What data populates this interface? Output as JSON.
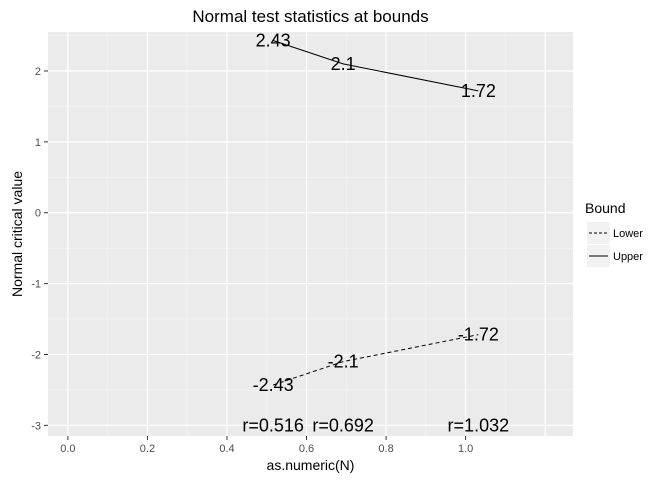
{
  "chart_data": {
    "type": "line",
    "title": "Normal test statistics at bounds",
    "xlabel": "as.numeric(N)",
    "ylabel": "Normal critical value",
    "xlim": [
      -0.05,
      1.27
    ],
    "ylim": [
      -3.15,
      2.55
    ],
    "x_ticks": [
      0.0,
      0.2,
      0.4,
      0.6,
      0.8,
      1.0
    ],
    "x_tick_labels": [
      "0.0",
      "0.2",
      "0.4",
      "0.6",
      "0.8",
      "1.0"
    ],
    "y_ticks": [
      -3,
      -2,
      -1,
      0,
      1,
      2
    ],
    "y_tick_labels": [
      "-3",
      "-2",
      "-1",
      "0",
      "1",
      "2"
    ],
    "grid": true,
    "legend": {
      "title": "Bound",
      "position": "right",
      "entries": [
        {
          "name": "Lower",
          "linetype": "dashed"
        },
        {
          "name": "Upper",
          "linetype": "solid"
        }
      ]
    },
    "series": [
      {
        "name": "Lower",
        "linetype": "dashed",
        "x": [
          0.516,
          0.692,
          1.032
        ],
        "y": [
          -2.43,
          -2.1,
          -1.72
        ],
        "labels": [
          "-2.43",
          "-2.1",
          "-1.72"
        ]
      },
      {
        "name": "Upper",
        "linetype": "solid",
        "x": [
          0.516,
          0.692,
          1.032
        ],
        "y": [
          2.43,
          2.1,
          1.72
        ],
        "labels": [
          "2.43",
          "2.1",
          "1.72"
        ]
      }
    ],
    "annotations": [
      {
        "text": "r=0.516",
        "x": 0.516,
        "y": -3
      },
      {
        "text": "r=0.692",
        "x": 0.692,
        "y": -3
      },
      {
        "text": "r=1.032",
        "x": 1.032,
        "y": -3
      }
    ],
    "colors": {
      "panel": "#ebebeb",
      "grid_major": "#ffffff",
      "grid_minor": "#f5f5f5",
      "line": "#000000"
    }
  }
}
